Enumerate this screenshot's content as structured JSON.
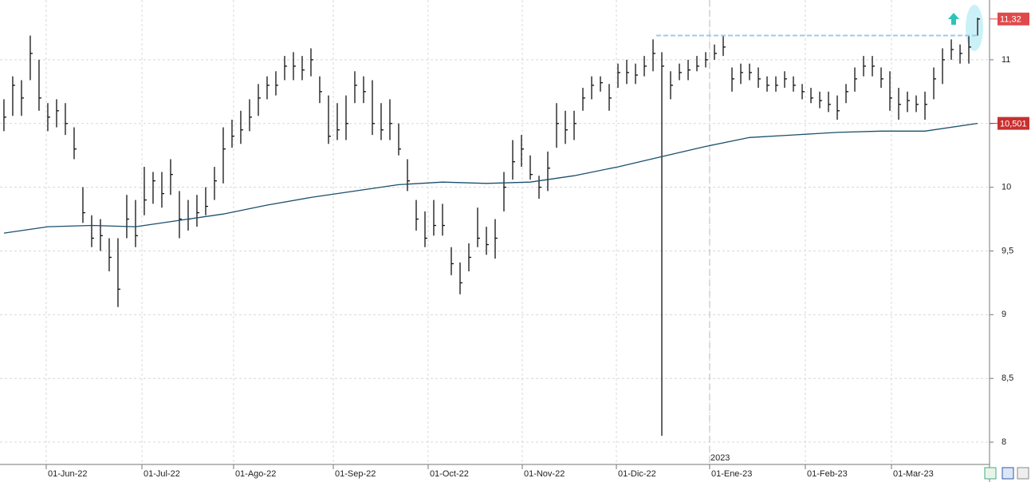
{
  "chart_data": {
    "type": "ohlc",
    "xlim": [
      -0.45,
      112.27
    ],
    "ylim": [
      7.825,
      11.469
    ],
    "grid": true,
    "color": "#111111",
    "xticks": [
      {
        "value": 4.82,
        "label": "01-Jun-22"
      },
      {
        "value": 15.73,
        "label": "01-Jul-22"
      },
      {
        "value": 26.18,
        "label": "01-Ago-22"
      },
      {
        "value": 37.55,
        "label": "01-Sep-22"
      },
      {
        "value": 48.36,
        "label": "01-Oct-22"
      },
      {
        "value": 59.09,
        "label": "01-Nov-22"
      },
      {
        "value": 69.82,
        "label": "01-Dic-22"
      },
      {
        "value": 80.45,
        "label": "01-Ene-23"
      },
      {
        "value": 91.36,
        "label": "01-Feb-23"
      },
      {
        "value": 101.18,
        "label": "01-Mar-23"
      }
    ],
    "yticks": [
      8,
      {
        "value": 8.5,
        "label": "8,5"
      },
      9,
      {
        "value": 9.5,
        "label": "9,5"
      },
      10,
      {
        "value": 10.5,
        "label": "10,5"
      },
      11
    ],
    "year_marker": {
      "label": "2023",
      "x": 80.45
    },
    "bars": {
      "high": [
        10.69,
        10.87,
        10.84,
        11.19,
        11.0,
        10.66,
        10.69,
        10.66,
        10.47,
        10.0,
        9.78,
        9.75,
        9.6,
        9.6,
        9.94,
        9.9,
        10.16,
        10.12,
        10.12,
        10.22,
        9.97,
        9.9,
        9.94,
        10.0,
        10.16,
        10.47,
        10.53,
        10.6,
        10.69,
        10.81,
        10.87,
        10.91,
        11.03,
        11.06,
        11.03,
        11.09,
        10.87,
        10.72,
        10.66,
        10.72,
        10.91,
        10.87,
        10.84,
        10.66,
        10.69,
        10.5,
        10.22,
        9.9,
        9.81,
        9.9,
        9.87,
        9.53,
        9.41,
        9.56,
        9.84,
        9.69,
        9.75,
        10.12,
        10.37,
        10.41,
        10.25,
        10.09,
        10.28,
        10.66,
        10.6,
        10.6,
        10.78,
        10.87,
        10.87,
        10.81,
        10.97,
        11.0,
        10.97,
        11.03,
        11.16,
        11.06,
        10.91,
        10.97,
        11.0,
        11.03,
        11.06,
        11.12,
        11.19,
        10.94,
        10.97,
        10.97,
        10.94,
        10.87,
        10.87,
        10.91,
        10.87,
        10.81,
        10.78,
        10.75,
        10.75,
        10.72,
        10.81,
        10.94,
        11.03,
        11.03,
        10.94,
        10.91,
        10.78,
        10.75,
        10.72,
        10.75,
        10.94,
        11.09,
        11.16,
        11.12,
        11.19,
        11.33
      ],
      "low": [
        10.44,
        10.56,
        10.56,
        10.84,
        10.6,
        10.44,
        10.47,
        10.41,
        10.22,
        9.72,
        9.53,
        9.5,
        9.34,
        9.06,
        9.6,
        9.53,
        9.78,
        9.87,
        9.84,
        9.94,
        9.6,
        9.66,
        9.69,
        9.78,
        9.9,
        10.03,
        10.31,
        10.34,
        10.44,
        10.56,
        10.69,
        10.72,
        10.84,
        10.84,
        10.84,
        10.87,
        10.66,
        10.34,
        10.37,
        10.37,
        10.66,
        10.66,
        10.41,
        10.37,
        10.37,
        10.25,
        9.97,
        9.66,
        9.53,
        9.62,
        9.62,
        9.31,
        9.16,
        9.34,
        9.53,
        9.47,
        9.44,
        9.81,
        10.06,
        10.16,
        10.06,
        9.91,
        9.97,
        10.31,
        10.34,
        10.37,
        10.6,
        10.69,
        10.75,
        10.6,
        10.78,
        10.81,
        10.81,
        10.87,
        10.91,
        8.05,
        10.69,
        10.84,
        10.84,
        10.91,
        10.94,
        11.0,
        11.03,
        10.75,
        10.81,
        10.84,
        10.78,
        10.75,
        10.75,
        10.78,
        10.75,
        10.69,
        10.66,
        10.62,
        10.59,
        10.53,
        10.66,
        10.75,
        10.87,
        10.87,
        10.78,
        10.6,
        10.53,
        10.59,
        10.59,
        10.53,
        10.69,
        10.81,
        11.0,
        10.97,
        10.97,
        11.19
      ],
      "close": [
        10.55,
        10.8,
        10.7,
        11.05,
        10.7,
        10.55,
        10.6,
        10.5,
        10.3,
        9.8,
        9.6,
        9.62,
        9.45,
        9.2,
        9.75,
        9.62,
        9.9,
        10.05,
        9.95,
        10.1,
        9.75,
        9.75,
        9.8,
        9.85,
        10.05,
        10.3,
        10.4,
        10.45,
        10.55,
        10.7,
        10.8,
        10.8,
        10.95,
        10.95,
        10.92,
        11.0,
        10.75,
        10.4,
        10.45,
        10.5,
        10.8,
        10.75,
        10.5,
        10.45,
        10.5,
        10.3,
        10.05,
        9.75,
        9.6,
        9.7,
        9.7,
        9.4,
        9.25,
        9.45,
        9.6,
        9.55,
        9.6,
        10.0,
        10.2,
        10.3,
        10.1,
        10.0,
        10.15,
        10.5,
        10.45,
        10.5,
        10.7,
        10.8,
        10.82,
        10.7,
        10.9,
        10.9,
        10.88,
        10.95,
        11.05,
        10.95,
        10.8,
        10.9,
        10.92,
        10.95,
        11.0,
        11.05,
        11.1,
        10.85,
        10.9,
        10.9,
        10.85,
        10.8,
        10.8,
        10.85,
        10.8,
        10.75,
        10.7,
        10.68,
        10.65,
        10.6,
        10.75,
        10.85,
        10.95,
        10.95,
        10.85,
        10.7,
        10.65,
        10.68,
        10.65,
        10.65,
        10.85,
        11.0,
        11.08,
        11.05,
        11.1,
        11.32
      ]
    },
    "moving_average": {
      "color": "#1b4f6b",
      "x": [
        0,
        5,
        10,
        15,
        20,
        25,
        30,
        35,
        40,
        45,
        50,
        55,
        60,
        65,
        70,
        75,
        80,
        85,
        90,
        95,
        100,
        105,
        111
      ],
      "values": [
        9.64,
        9.69,
        9.7,
        9.69,
        9.74,
        9.79,
        9.86,
        9.92,
        9.97,
        10.02,
        10.04,
        10.03,
        10.04,
        10.09,
        10.16,
        10.24,
        10.32,
        10.39,
        10.41,
        10.43,
        10.44,
        10.44,
        10.501
      ]
    },
    "resistance": {
      "value": 11.19,
      "x": [
        74.36,
        110.9
      ],
      "color": "#9ecbea"
    },
    "price_markers": [
      {
        "value": 11.32,
        "label": "11,32",
        "color": "#e0494b"
      },
      {
        "value": 10.501,
        "label": "10,501",
        "color": "#c8302f"
      }
    ]
  }
}
